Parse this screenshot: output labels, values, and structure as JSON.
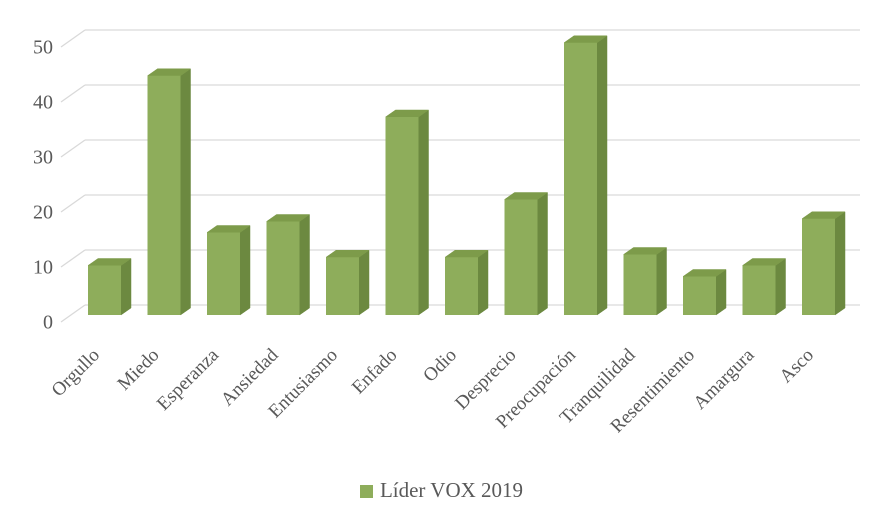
{
  "chart_data": {
    "type": "bar",
    "style": "3d-column",
    "title": "",
    "categories": [
      "Orgullo",
      "Miedo",
      "Esperanza",
      "Ansiedad",
      "Entusiasmo",
      "Enfado",
      "Odio",
      "Desprecio",
      "Preocupación",
      "Tranquilidad",
      "Resentimiento",
      "Amargura",
      "Asco"
    ],
    "series": [
      {
        "name": "Líder VOX 2019",
        "values": [
          9,
          43.5,
          15,
          17,
          10.5,
          36,
          10.5,
          21,
          49.5,
          11,
          7,
          9,
          17.5
        ]
      }
    ],
    "xlabel": "",
    "ylabel": "",
    "ylim": [
      0,
      50
    ],
    "yticks": [
      0,
      10,
      20,
      30,
      40,
      50
    ],
    "grid": true,
    "legend_position": "bottom-center",
    "colors": {
      "bar_front": "#8ead5b",
      "bar_side": "#6c8940",
      "bar_top": "#7d9b4a",
      "gridline": "#d9d9d9",
      "axis_text": "#595959",
      "background": "#ffffff"
    }
  }
}
